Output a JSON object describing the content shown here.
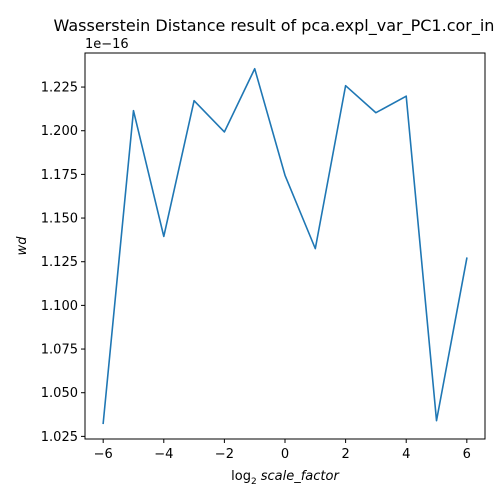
{
  "chart_data": {
    "type": "line",
    "title": "Wasserstein Distance result of pca.expl_var_PC1.cor_in",
    "xlabel_base": "log",
    "xlabel_sub": "2",
    "xlabel_var": "scale_factor",
    "ylabel": "wd",
    "y_offset_text": "1e−16",
    "xlim": [
      -6.6,
      6.6
    ],
    "ylim": [
      1.0235,
      1.2445
    ],
    "x_ticks": [
      -6,
      -4,
      -2,
      0,
      2,
      4,
      6
    ],
    "x_tick_labels": [
      "−6",
      "−4",
      "−2",
      "0",
      "2",
      "4",
      "6"
    ],
    "y_ticks": [
      1.025,
      1.05,
      1.075,
      1.1,
      1.125,
      1.15,
      1.175,
      1.2,
      1.225
    ],
    "y_tick_labels": [
      "1.025",
      "1.050",
      "1.075",
      "1.100",
      "1.125",
      "1.150",
      "1.175",
      "1.200",
      "1.225"
    ],
    "series": [
      {
        "color": "#1f77b4",
        "x": [
          -6,
          -5,
          -4,
          -3,
          -2,
          -1,
          0,
          1,
          2,
          3,
          4,
          5,
          6
        ],
        "y": [
          1.0325,
          1.2115,
          1.1395,
          1.2172,
          1.1993,
          1.2355,
          1.1745,
          1.1325,
          1.2258,
          1.2103,
          1.2198,
          1.034,
          1.127
        ]
      }
    ],
    "grid": false,
    "legend": "none"
  }
}
